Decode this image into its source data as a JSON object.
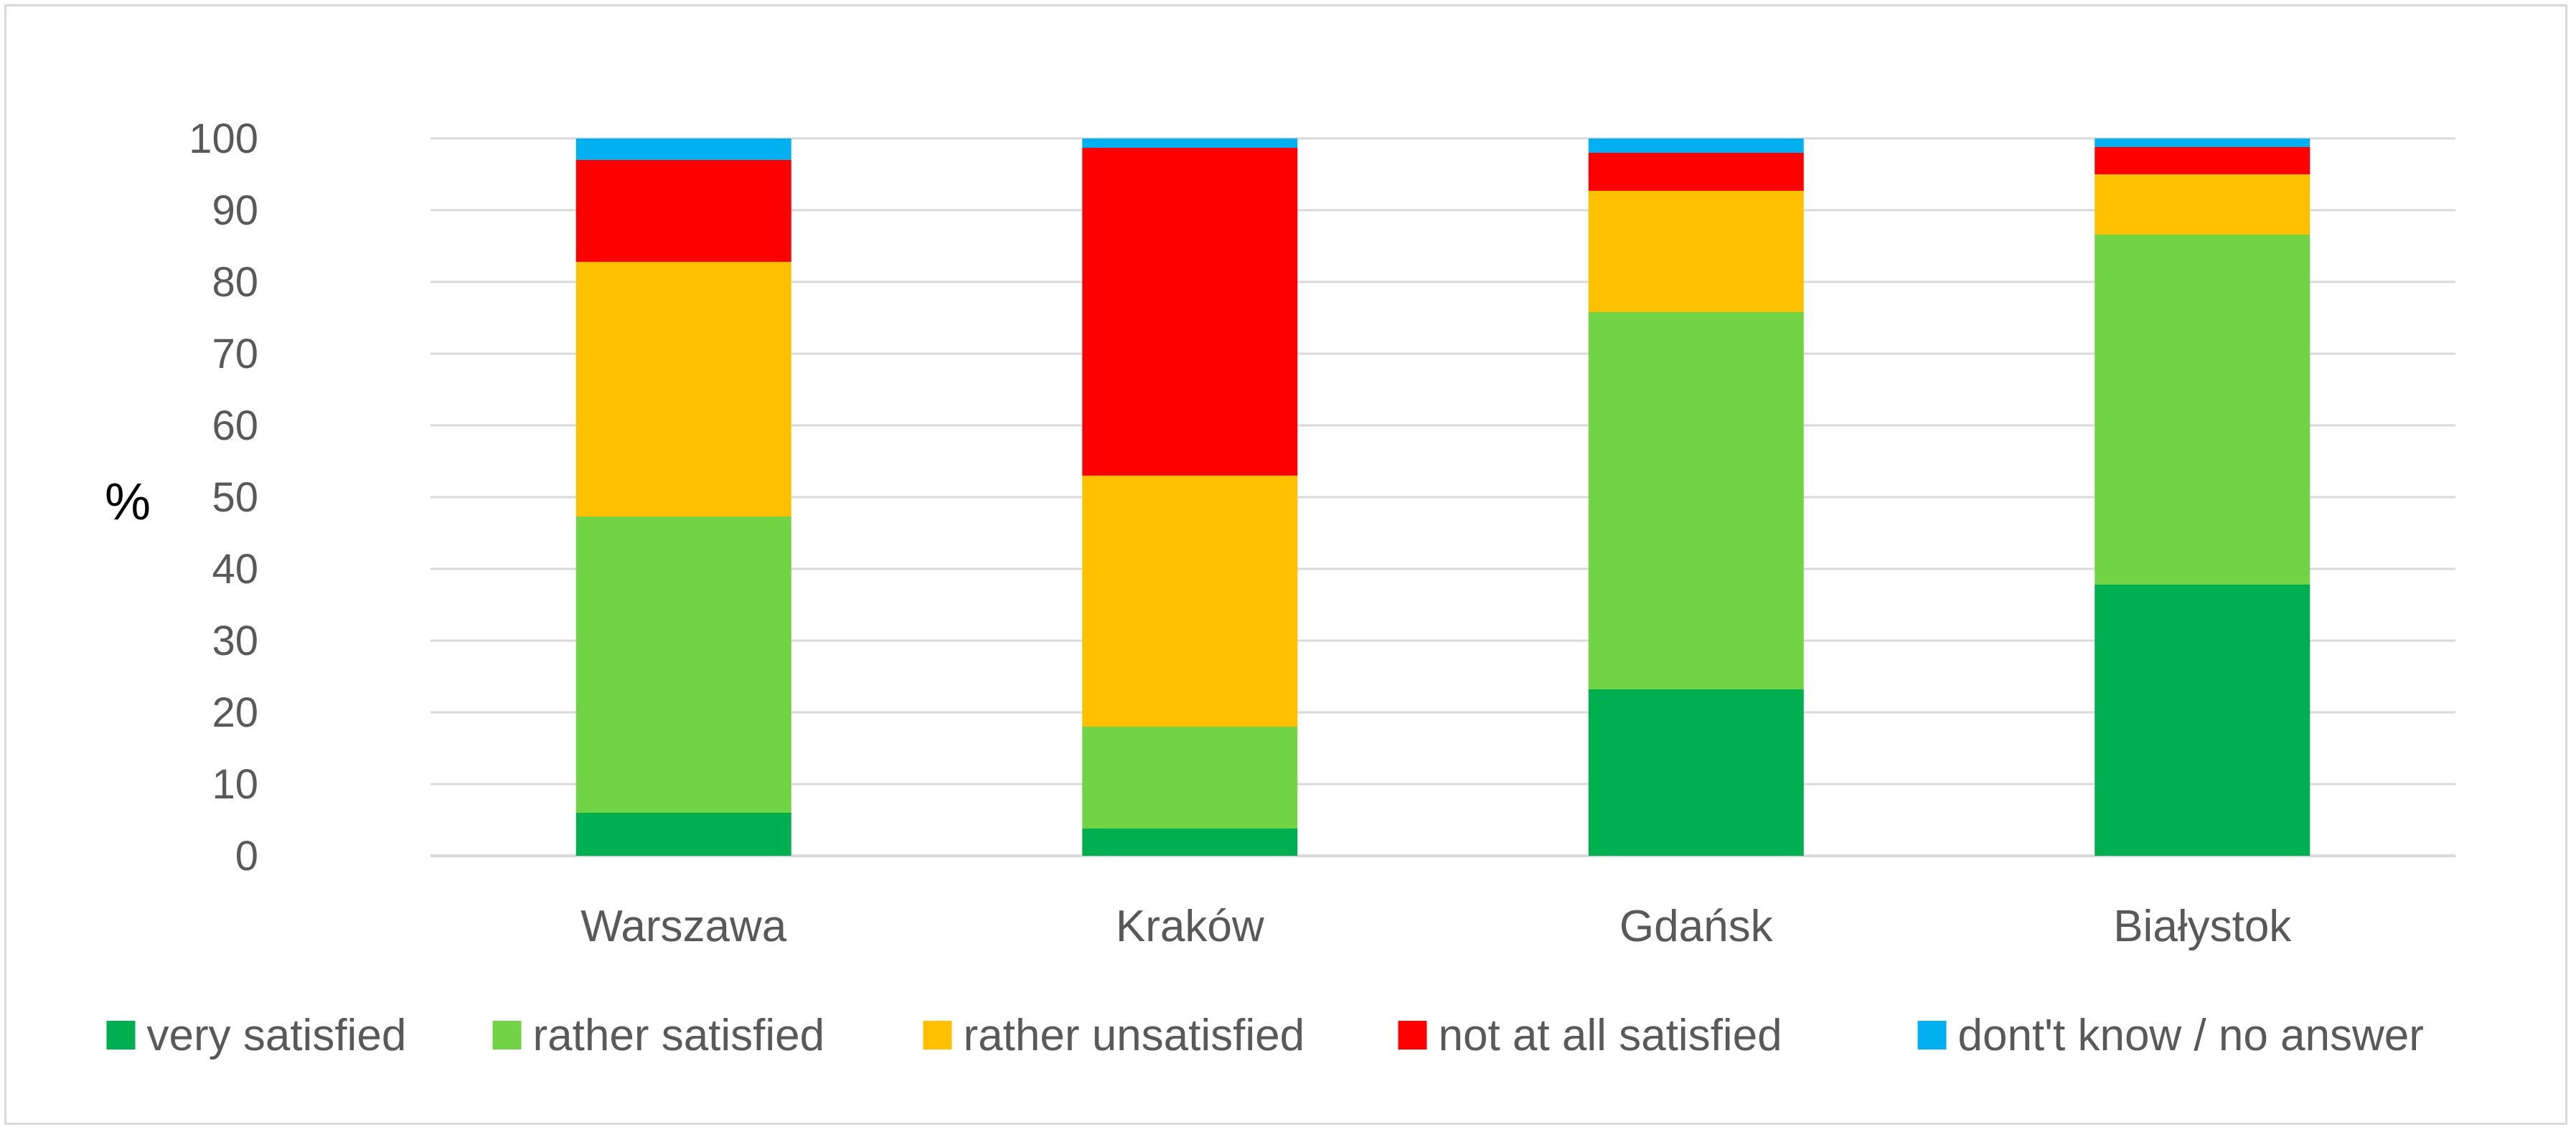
{
  "chart_data": {
    "type": "bar",
    "stacked": true,
    "ylabel": "%",
    "ylim": [
      0,
      100
    ],
    "ytick_step": 10,
    "grid": true,
    "legend_position": "bottom",
    "categories": [
      "Warszawa",
      "Kraków",
      "Gdańsk",
      "Białystok"
    ],
    "series": [
      {
        "name": "very satisfied",
        "color": "#00b050",
        "values": [
          6,
          3.8,
          23.2,
          37.8
        ]
      },
      {
        "name": "rather satisfied",
        "color": "#70d444",
        "values": [
          41.3,
          14.2,
          52.6,
          48.8
        ]
      },
      {
        "name": "rather unsatisfied",
        "color": "#ffc000",
        "values": [
          35.5,
          35,
          16.9,
          8.4
        ]
      },
      {
        "name": "not at all satisfied",
        "color": "#ff0000",
        "values": [
          14.2,
          45.7,
          5.3,
          3.8
        ]
      },
      {
        "name": "dont't know / no answer",
        "color": "#00b0f0",
        "values": [
          3,
          1.3,
          2,
          1.2
        ]
      }
    ]
  }
}
